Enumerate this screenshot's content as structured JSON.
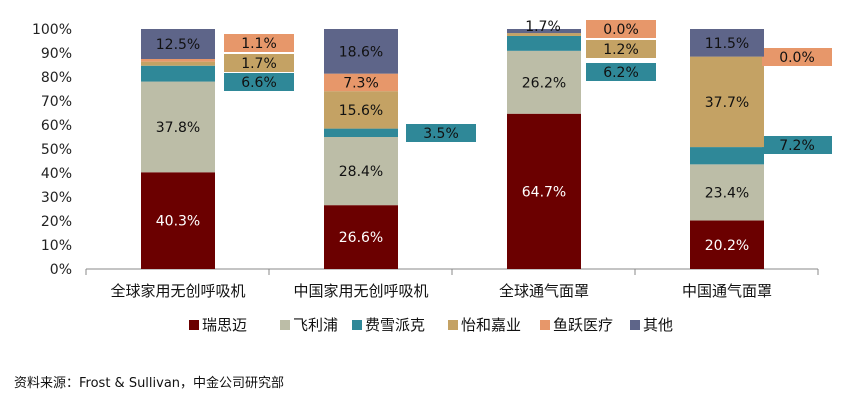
{
  "chart_data": {
    "type": "bar",
    "stacked": true,
    "percent": true,
    "categories": [
      "全球家用无创呼吸机",
      "中国家用无创呼吸机",
      "全球通气面罩",
      "中国通气面罩"
    ],
    "ylim": [
      0,
      100
    ],
    "yticks": [
      "0%",
      "10%",
      "20%",
      "30%",
      "40%",
      "50%",
      "60%",
      "70%",
      "80%",
      "90%",
      "100%"
    ],
    "grid": false,
    "legend_position": "bottom",
    "series": [
      {
        "name": "瑞思迈",
        "color": "#6b0000",
        "values": [
          40.3,
          26.6,
          64.7,
          20.2
        ],
        "labels": [
          "40.3%",
          "26.6%",
          "64.7%",
          "20.2%"
        ]
      },
      {
        "name": "飞利浦",
        "color": "#bcbda7",
        "values": [
          37.8,
          28.4,
          26.2,
          23.4
        ],
        "labels": [
          "37.8%",
          "28.4%",
          "26.2%",
          "23.4%"
        ]
      },
      {
        "name": "费雪派克",
        "color": "#2f8898",
        "values": [
          6.6,
          3.5,
          6.2,
          7.2
        ],
        "labels": [
          "6.6%",
          "3.5%",
          "6.2%",
          "7.2%"
        ]
      },
      {
        "name": "怡和嘉业",
        "color": "#c4a264",
        "values": [
          1.7,
          15.6,
          1.2,
          37.7
        ],
        "labels": [
          "1.7%",
          "15.6%",
          "1.2%",
          "37.7%"
        ]
      },
      {
        "name": "鱼跃医疗",
        "color": "#e7976a",
        "values": [
          1.1,
          7.3,
          0.0,
          0.0
        ],
        "labels": [
          "1.1%",
          "7.3%",
          "0.0%",
          "0.0%"
        ]
      },
      {
        "name": "其他",
        "color": "#5e6589",
        "values": [
          12.5,
          18.6,
          1.7,
          11.5
        ],
        "labels": [
          "12.5%",
          "18.6%",
          "1.7%",
          "11.5%"
        ]
      }
    ]
  },
  "source_text": "资料来源：Frost & Sullivan，中金公司研究部"
}
